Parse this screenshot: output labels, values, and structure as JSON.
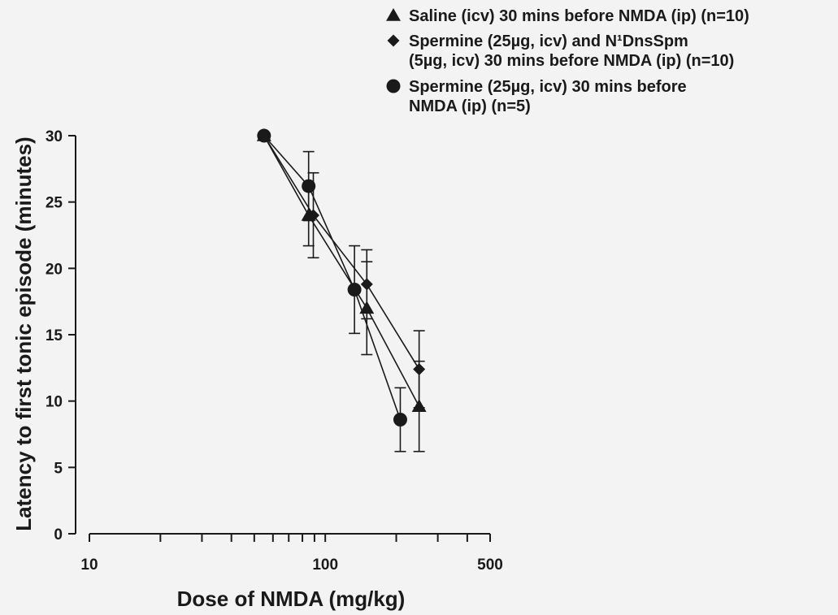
{
  "chart_data": {
    "type": "line",
    "title": "",
    "xlabel": "Dose of NMDA (mg/kg)",
    "ylabel": "Latency to first tonic episode (minutes)",
    "x_scale": "log",
    "xlim": [
      10,
      500
    ],
    "ylim": [
      0,
      30
    ],
    "x_tick_labels": [
      "10",
      "100",
      "500"
    ],
    "y_tick_labels": [
      "0",
      "5",
      "10",
      "15",
      "20",
      "25",
      "30"
    ],
    "grid": false,
    "legend_position": "top-right",
    "series": [
      {
        "name": "Saline (icv) 30 mins before NMDA (ip) (n=10)",
        "marker": "triangle",
        "x": [
          55,
          85,
          150,
          250
        ],
        "y": [
          30.0,
          24.0,
          17.0,
          9.6
        ],
        "err": [
          0.0,
          2.3,
          3.5,
          3.4
        ]
      },
      {
        "name": "Spermine (25µg, icv) and N¹DnsSpm (5µg, icv) 30 mins before NMDA (ip) (n=10)",
        "marker": "diamond",
        "x": [
          55,
          89,
          150,
          250
        ],
        "y": [
          30.0,
          24.0,
          18.8,
          12.4
        ],
        "err": [
          0.0,
          3.2,
          2.6,
          2.9
        ]
      },
      {
        "name": "Spermine (25µg, icv) 30 mins before NMDA (ip) (n=5)",
        "marker": "circle",
        "x": [
          55,
          85,
          133,
          208
        ],
        "y": [
          30.0,
          26.2,
          18.4,
          8.6
        ],
        "err": [
          0.0,
          2.6,
          3.3,
          2.4
        ]
      }
    ]
  },
  "legend": {
    "entries": [
      [
        "Saline (icv) 30 mins before NMDA (ip) (n=10)"
      ],
      [
        "Spermine (25µg, icv) and N¹DnsSpm",
        "(5µg, icv) 30 mins before NMDA (ip) (n=10)"
      ],
      [
        "Spermine (25µg, icv) 30 mins before",
        "NMDA (ip) (n=5)"
      ]
    ]
  }
}
